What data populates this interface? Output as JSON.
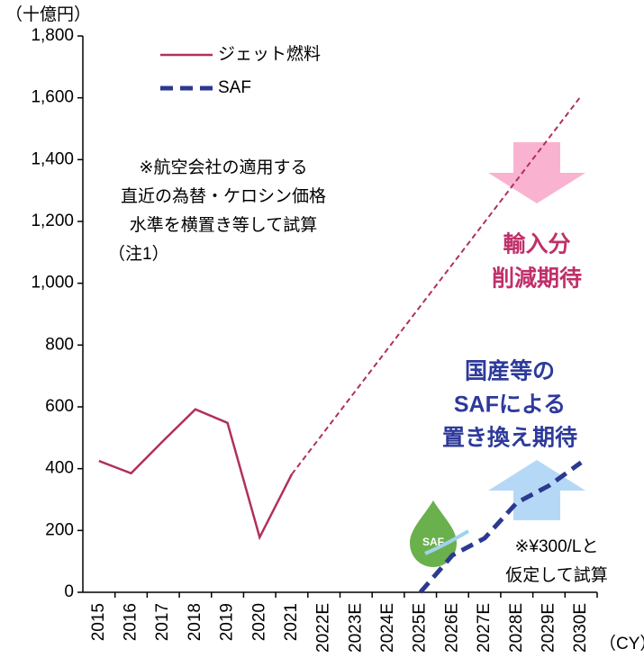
{
  "chart_data": {
    "type": "line",
    "y_label": "（十億円）",
    "x_label": "（CY）",
    "categories": [
      "2015",
      "2016",
      "2017",
      "2018",
      "2019",
      "2020",
      "2021",
      "2022E",
      "2023E",
      "2024E",
      "2025E",
      "2026E",
      "2027E",
      "2028E",
      "2029E",
      "2030E"
    ],
    "series": [
      {
        "name": "ジェット燃料",
        "color": "#b0305f",
        "dash": "solid",
        "values": [
          425,
          385,
          490,
          592,
          548,
          178,
          382,
          null,
          null,
          null,
          null,
          null,
          null,
          null,
          null,
          null
        ]
      },
      {
        "color": "#b0305f",
        "dash": "thin",
        "values": [
          null,
          null,
          null,
          null,
          null,
          null,
          382,
          518,
          654,
          790,
          926,
          1062,
          1198,
          1334,
          1470,
          1606
        ]
      },
      {
        "name": "SAF",
        "color": "#2b3990",
        "dash": "bold",
        "values": [
          null,
          null,
          null,
          null,
          null,
          null,
          null,
          null,
          null,
          null,
          0,
          120,
          175,
          290,
          345,
          420
        ]
      }
    ],
    "ylim": [
      0,
      1800
    ],
    "yticks": [
      0,
      200,
      400,
      600,
      800,
      {
        "value": 1000,
        "label": "1,000"
      },
      {
        "value": 1200,
        "label": "1,200"
      },
      {
        "value": 1400,
        "label": "1,400"
      },
      {
        "value": 1600,
        "label": "1,600"
      },
      {
        "value": 1800,
        "label": "1,800"
      }
    ],
    "annotations": {
      "note": [
        "※航空会社の適用する",
        "直近の為替・ケロシン価格",
        "水準を横置き等して試算",
        "（注1）"
      ],
      "reduction": [
        "輸入分",
        "削減期待"
      ],
      "replacement": [
        "国産等の",
        "SAFによる",
        "置き換え期待"
      ],
      "saf_price": [
        "※¥300/Lと",
        "仮定して試算"
      ],
      "icon": "SAF"
    }
  }
}
